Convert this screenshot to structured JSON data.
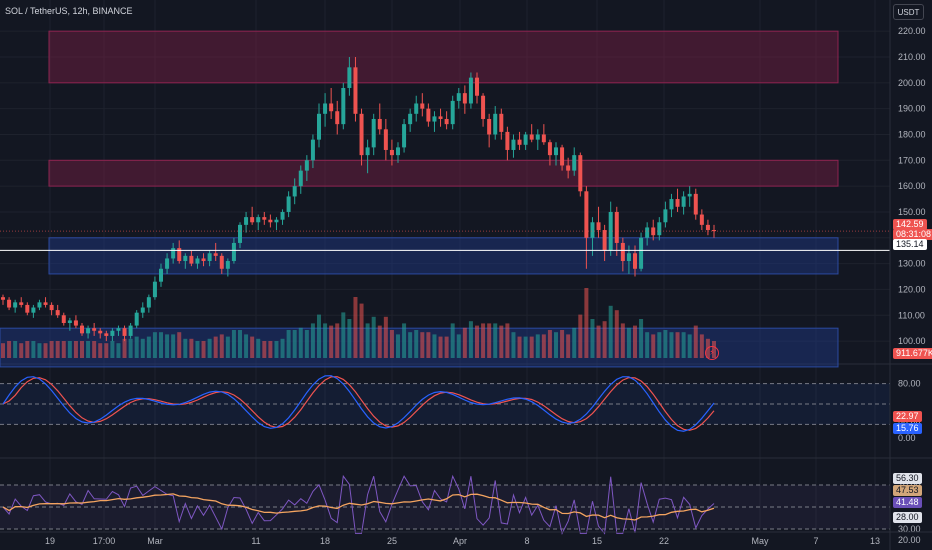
{
  "header": {
    "title": "SOL / TetherUS, 12h, BINANCE",
    "currency": "USDT"
  },
  "colors": {
    "bg": "#131722",
    "up": "#26a69a",
    "down": "#ef5350",
    "supply_zone": "#7b1f45",
    "demand_zone": "#1e3a8a",
    "grid": "#1e222d",
    "stoch_k": "#2962ff",
    "stoch_d": "#ef5350",
    "rsi": "#7e57c2",
    "rsi_ma": "#f4a460"
  },
  "price_axis": {
    "min": 95,
    "max": 222,
    "ticks": [
      "220.00",
      "210.00",
      "200.00",
      "190.00",
      "180.00",
      "170.00",
      "160.00",
      "150.00",
      "140.00",
      "130.00",
      "120.00",
      "110.00",
      "100.00"
    ]
  },
  "badges": {
    "last_price": "142.59",
    "countdown": "08:31:08",
    "line_price": "135.14",
    "volume": "911.677K",
    "stoch_d": "22.97",
    "stoch_k": "15.76",
    "rsi_top": "56.30",
    "rsi_ma": "47.53",
    "rsi": "41.48",
    "rsi_low": "28.00"
  },
  "stoch_axis": {
    "ticks": [
      "80.00",
      "20.00",
      "0.00"
    ]
  },
  "rsi_axis": {
    "ticks": [
      "70.00",
      "30.00",
      "20.00"
    ]
  },
  "time_axis": {
    "labels": [
      "19",
      "17:00",
      "Mar",
      "11",
      "18",
      "25",
      "Apr",
      "8",
      "15",
      "22",
      "May",
      "7",
      "13"
    ]
  },
  "zones": [
    {
      "type": "supply",
      "from_price": 200,
      "to_price": 220
    },
    {
      "type": "supply",
      "from_price": 160,
      "to_price": 170
    },
    {
      "type": "demand",
      "from_price": 126,
      "to_price": 140
    },
    {
      "type": "demand",
      "from_price": 90,
      "to_price": 105
    }
  ],
  "chart_data": {
    "type": "candlestick",
    "title": "SOL / TetherUS, 12h, BINANCE",
    "ylim": [
      95,
      222
    ],
    "horizontal_line": 135.14,
    "last_price": 142.59,
    "ohlc": [
      [
        117,
        118,
        114,
        116
      ],
      [
        116,
        117,
        112,
        113
      ],
      [
        113,
        116,
        111,
        115
      ],
      [
        115,
        117,
        113,
        114
      ],
      [
        114,
        115,
        110,
        111
      ],
      [
        111,
        114,
        109,
        113
      ],
      [
        113,
        116,
        112,
        115
      ],
      [
        115,
        117,
        113,
        114
      ],
      [
        114,
        115,
        110,
        112
      ],
      [
        112,
        114,
        109,
        110
      ],
      [
        110,
        111,
        106,
        107
      ],
      [
        107,
        109,
        104,
        108
      ],
      [
        108,
        110,
        105,
        106
      ],
      [
        106,
        107,
        102,
        103
      ],
      [
        103,
        106,
        101,
        105
      ],
      [
        105,
        107,
        102,
        104
      ],
      [
        104,
        105,
        101,
        103
      ],
      [
        103,
        104,
        100,
        102
      ],
      [
        102,
        105,
        100,
        104
      ],
      [
        104,
        106,
        102,
        105
      ],
      [
        105,
        106,
        100,
        102
      ],
      [
        102,
        107,
        101,
        106
      ],
      [
        106,
        112,
        105,
        111
      ],
      [
        111,
        115,
        109,
        113
      ],
      [
        113,
        118,
        111,
        117
      ],
      [
        117,
        125,
        116,
        123
      ],
      [
        123,
        130,
        121,
        128
      ],
      [
        128,
        134,
        126,
        132
      ],
      [
        132,
        138,
        130,
        136
      ],
      [
        136,
        139,
        130,
        131
      ],
      [
        131,
        134,
        128,
        133
      ],
      [
        133,
        135,
        129,
        130
      ],
      [
        130,
        133,
        128,
        132
      ],
      [
        132,
        134,
        129,
        131
      ],
      [
        131,
        135,
        129,
        134
      ],
      [
        134,
        138,
        131,
        133
      ],
      [
        133,
        134,
        126,
        128
      ],
      [
        128,
        132,
        125,
        131
      ],
      [
        131,
        140,
        130,
        138
      ],
      [
        138,
        146,
        136,
        145
      ],
      [
        145,
        150,
        142,
        148
      ],
      [
        148,
        152,
        145,
        146
      ],
      [
        146,
        149,
        143,
        148
      ],
      [
        148,
        150,
        145,
        147
      ],
      [
        147,
        149,
        144,
        146
      ],
      [
        146,
        148,
        143,
        147
      ],
      [
        147,
        151,
        145,
        150
      ],
      [
        150,
        158,
        148,
        156
      ],
      [
        156,
        163,
        153,
        160
      ],
      [
        160,
        168,
        157,
        166
      ],
      [
        166,
        172,
        162,
        170
      ],
      [
        170,
        180,
        167,
        178
      ],
      [
        178,
        192,
        175,
        188
      ],
      [
        188,
        196,
        183,
        192
      ],
      [
        192,
        198,
        186,
        189
      ],
      [
        189,
        193,
        180,
        184
      ],
      [
        184,
        200,
        182,
        198
      ],
      [
        198,
        210,
        195,
        206
      ],
      [
        206,
        210,
        185,
        188
      ],
      [
        188,
        190,
        168,
        172
      ],
      [
        172,
        178,
        165,
        175
      ],
      [
        175,
        188,
        172,
        186
      ],
      [
        186,
        192,
        180,
        182
      ],
      [
        182,
        186,
        170,
        174
      ],
      [
        174,
        178,
        168,
        172
      ],
      [
        172,
        177,
        169,
        175
      ],
      [
        175,
        186,
        173,
        184
      ],
      [
        184,
        190,
        181,
        188
      ],
      [
        188,
        195,
        185,
        192
      ],
      [
        192,
        196,
        187,
        190
      ],
      [
        190,
        192,
        183,
        185
      ],
      [
        185,
        189,
        181,
        187
      ],
      [
        187,
        190,
        183,
        186
      ],
      [
        186,
        189,
        182,
        184
      ],
      [
        184,
        195,
        182,
        193
      ],
      [
        193,
        198,
        190,
        196
      ],
      [
        196,
        199,
        188,
        192
      ],
      [
        192,
        204,
        190,
        202
      ],
      [
        202,
        204,
        192,
        195
      ],
      [
        195,
        196,
        183,
        186
      ],
      [
        186,
        188,
        175,
        180
      ],
      [
        180,
        191,
        178,
        188
      ],
      [
        188,
        190,
        178,
        181
      ],
      [
        181,
        183,
        170,
        174
      ],
      [
        174,
        180,
        171,
        178
      ],
      [
        178,
        181,
        174,
        176
      ],
      [
        176,
        181,
        174,
        180
      ],
      [
        180,
        184,
        177,
        178
      ],
      [
        178,
        182,
        174,
        180
      ],
      [
        180,
        184,
        176,
        177
      ],
      [
        177,
        178,
        168,
        172
      ],
      [
        172,
        177,
        168,
        175
      ],
      [
        175,
        176,
        166,
        168
      ],
      [
        168,
        171,
        163,
        166
      ],
      [
        166,
        175,
        164,
        172
      ],
      [
        172,
        173,
        156,
        158
      ],
      [
        158,
        160,
        128,
        140
      ],
      [
        140,
        148,
        133,
        146
      ],
      [
        146,
        152,
        140,
        143
      ],
      [
        143,
        145,
        131,
        135
      ],
      [
        135,
        154,
        133,
        150
      ],
      [
        150,
        152,
        133,
        138
      ],
      [
        138,
        140,
        127,
        131
      ],
      [
        131,
        137,
        126,
        134
      ],
      [
        134,
        137,
        125,
        128
      ],
      [
        128,
        142,
        127,
        140
      ],
      [
        140,
        146,
        137,
        144
      ],
      [
        144,
        147,
        139,
        141
      ],
      [
        141,
        148,
        139,
        146
      ],
      [
        146,
        154,
        144,
        151
      ],
      [
        151,
        157,
        148,
        155
      ],
      [
        155,
        159,
        150,
        152
      ],
      [
        152,
        158,
        149,
        156
      ],
      [
        156,
        160,
        152,
        157
      ],
      [
        157,
        159,
        147,
        149
      ],
      [
        149,
        151,
        143,
        145
      ],
      [
        145,
        147,
        141,
        143
      ],
      [
        143,
        145,
        140,
        142.59
      ]
    ]
  }
}
